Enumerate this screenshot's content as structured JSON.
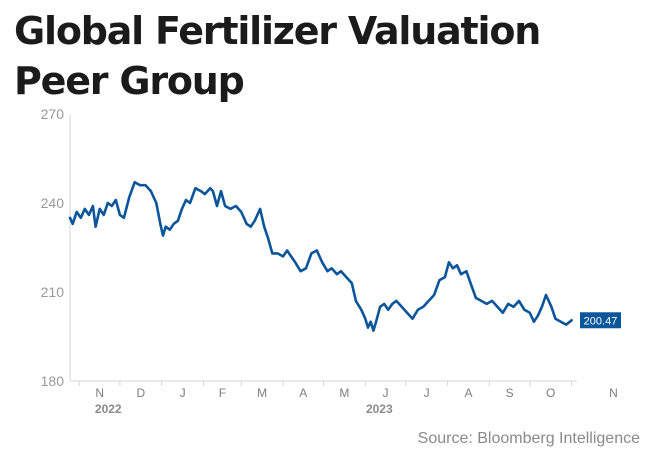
{
  "title_lines": [
    "Global Fertilizer Valuation",
    "Peer Group"
  ],
  "source": "Source: Bloomberg Intelligence",
  "chart_data": {
    "type": "line",
    "title": "Global Fertilizer Valuation Peer Group",
    "ylim": [
      180,
      270
    ],
    "yticks": [
      180,
      210,
      240,
      270
    ],
    "xrange": [
      "2022-10-25",
      "2023-11-05"
    ],
    "month_ticks": [
      {
        "date": "2022-11-01",
        "label": "N"
      },
      {
        "date": "2022-12-01",
        "label": "D"
      },
      {
        "date": "2023-01-01",
        "label": "J"
      },
      {
        "date": "2023-02-01",
        "label": "F"
      },
      {
        "date": "2023-03-01",
        "label": "M"
      },
      {
        "date": "2023-04-01",
        "label": "A"
      },
      {
        "date": "2023-05-01",
        "label": "M"
      },
      {
        "date": "2023-06-01",
        "label": "J"
      },
      {
        "date": "2023-07-01",
        "label": "J"
      },
      {
        "date": "2023-08-01",
        "label": "A"
      },
      {
        "date": "2023-09-01",
        "label": "S"
      },
      {
        "date": "2023-10-01",
        "label": "O"
      },
      {
        "date": "2023-11-01",
        "label": "N"
      }
    ],
    "year_labels": [
      {
        "date": "2022-11-12",
        "label": "2022"
      },
      {
        "date": "2023-06-01",
        "label": "2023"
      }
    ],
    "grid": false,
    "line_color": "#0b559a",
    "last_value_label": "200.47",
    "series": [
      {
        "points": [
          [
            "2022-10-25",
            235
          ],
          [
            "2022-10-27",
            233
          ],
          [
            "2022-10-30",
            237
          ],
          [
            "2022-11-02",
            235
          ],
          [
            "2022-11-05",
            238
          ],
          [
            "2022-11-08",
            236
          ],
          [
            "2022-11-11",
            239
          ],
          [
            "2022-11-13",
            232
          ],
          [
            "2022-11-16",
            238
          ],
          [
            "2022-11-19",
            236
          ],
          [
            "2022-11-22",
            240
          ],
          [
            "2022-11-25",
            239
          ],
          [
            "2022-11-28",
            241
          ],
          [
            "2022-12-01",
            236
          ],
          [
            "2022-12-04",
            235
          ],
          [
            "2022-12-08",
            242
          ],
          [
            "2022-12-12",
            247
          ],
          [
            "2022-12-16",
            246
          ],
          [
            "2022-12-20",
            246
          ],
          [
            "2022-12-24",
            244
          ],
          [
            "2022-12-28",
            240
          ],
          [
            "2022-12-31",
            233
          ],
          [
            "2023-01-02",
            229
          ],
          [
            "2023-01-04",
            232
          ],
          [
            "2023-01-07",
            231
          ],
          [
            "2023-01-10",
            233
          ],
          [
            "2023-01-13",
            234
          ],
          [
            "2023-01-16",
            238
          ],
          [
            "2023-01-19",
            241
          ],
          [
            "2023-01-22",
            240
          ],
          [
            "2023-01-26",
            245
          ],
          [
            "2023-01-30",
            244
          ],
          [
            "2023-02-02",
            243
          ],
          [
            "2023-02-06",
            245
          ],
          [
            "2023-02-08",
            244
          ],
          [
            "2023-02-11",
            239
          ],
          [
            "2023-02-14",
            244
          ],
          [
            "2023-02-17",
            239
          ],
          [
            "2023-02-21",
            238
          ],
          [
            "2023-02-25",
            239
          ],
          [
            "2023-03-01",
            237
          ],
          [
            "2023-03-05",
            233
          ],
          [
            "2023-03-08",
            232
          ],
          [
            "2023-03-11",
            234
          ],
          [
            "2023-03-15",
            238
          ],
          [
            "2023-03-18",
            232
          ],
          [
            "2023-03-21",
            228
          ],
          [
            "2023-03-24",
            223
          ],
          [
            "2023-03-28",
            223
          ],
          [
            "2023-04-01",
            222
          ],
          [
            "2023-04-04",
            224
          ],
          [
            "2023-04-07",
            222
          ],
          [
            "2023-04-10",
            220
          ],
          [
            "2023-04-14",
            217
          ],
          [
            "2023-04-18",
            218
          ],
          [
            "2023-04-22",
            223
          ],
          [
            "2023-04-26",
            224
          ],
          [
            "2023-04-30",
            220
          ],
          [
            "2023-05-04",
            217
          ],
          [
            "2023-05-07",
            218
          ],
          [
            "2023-05-11",
            216
          ],
          [
            "2023-05-14",
            217
          ],
          [
            "2023-05-18",
            215
          ],
          [
            "2023-05-22",
            213
          ],
          [
            "2023-05-25",
            207
          ],
          [
            "2023-05-29",
            204
          ],
          [
            "2023-06-01",
            201
          ],
          [
            "2023-06-03",
            198
          ],
          [
            "2023-06-05",
            200
          ],
          [
            "2023-06-07",
            197
          ],
          [
            "2023-06-09",
            200
          ],
          [
            "2023-06-12",
            205
          ],
          [
            "2023-06-15",
            206
          ],
          [
            "2023-06-18",
            204
          ],
          [
            "2023-06-21",
            206
          ],
          [
            "2023-06-24",
            207
          ],
          [
            "2023-06-28",
            205
          ],
          [
            "2023-07-02",
            203
          ],
          [
            "2023-07-06",
            201
          ],
          [
            "2023-07-10",
            204
          ],
          [
            "2023-07-14",
            205
          ],
          [
            "2023-07-18",
            207
          ],
          [
            "2023-07-22",
            209
          ],
          [
            "2023-07-26",
            214
          ],
          [
            "2023-07-30",
            215
          ],
          [
            "2023-08-02",
            220
          ],
          [
            "2023-08-05",
            218
          ],
          [
            "2023-08-08",
            219
          ],
          [
            "2023-08-11",
            216
          ],
          [
            "2023-08-15",
            217
          ],
          [
            "2023-08-18",
            213
          ],
          [
            "2023-08-22",
            208
          ],
          [
            "2023-08-26",
            207
          ],
          [
            "2023-08-30",
            206
          ],
          [
            "2023-09-03",
            207
          ],
          [
            "2023-09-07",
            205
          ],
          [
            "2023-09-11",
            203
          ],
          [
            "2023-09-15",
            206
          ],
          [
            "2023-09-19",
            205
          ],
          [
            "2023-09-23",
            207
          ],
          [
            "2023-09-27",
            204
          ],
          [
            "2023-10-01",
            203
          ],
          [
            "2023-10-04",
            200
          ],
          [
            "2023-10-07",
            202
          ],
          [
            "2023-10-10",
            205
          ],
          [
            "2023-10-13",
            209
          ],
          [
            "2023-10-17",
            205
          ],
          [
            "2023-10-20",
            201
          ],
          [
            "2023-10-24",
            200
          ],
          [
            "2023-10-28",
            199
          ],
          [
            "2023-11-01",
            200.47
          ]
        ]
      }
    ]
  }
}
